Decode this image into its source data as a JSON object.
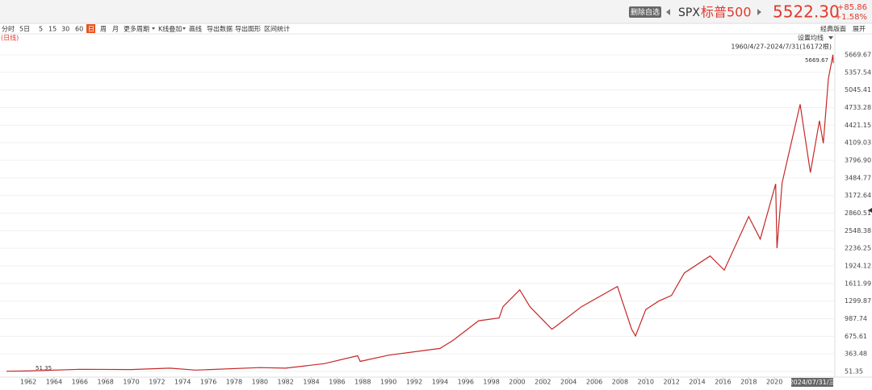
{
  "header": {
    "button": "删除自选",
    "symbol": "SPX",
    "name": "标普500",
    "price": "5522.30",
    "change": "+85.86",
    "change_pct": "+1.58%"
  },
  "toolbar": {
    "items": [
      "分时",
      "5日",
      "5",
      "15",
      "30",
      "60",
      "日",
      "周",
      "月",
      "更多周期",
      "K线叠加",
      "画线",
      "导出数据",
      "导出图形",
      "区间统计"
    ],
    "active": 6,
    "right": [
      "经典版面",
      "展开"
    ]
  },
  "chart_data": {
    "type": "line",
    "period_label": "(日线)",
    "ma_setting": "设置均线",
    "range_label": "1960/4/27-2024/7/31(16172根)",
    "cursor_label": "2024/07/31/三",
    "x": [
      1960.3,
      1962,
      1966,
      1970,
      1973,
      1975,
      1980,
      1982,
      1985,
      1987.6,
      1987.8,
      1990,
      1994,
      1995,
      1997,
      1998.6,
      1998.9,
      2000.2,
      2001,
      2002.7,
      2003,
      2005,
      2007.8,
      2008.9,
      2009.2,
      2010,
      2011,
      2012,
      2013,
      2015,
      2016.1,
      2018,
      2018.9,
      2020.1,
      2020.2,
      2020.6,
      2021,
      2022,
      2022.8,
      2023.5,
      2023.8,
      2024.2,
      2024.55,
      2024.58
    ],
    "series": [
      {
        "color": "#c62828",
        "values": [
          55,
          60,
          90,
          85,
          110,
          75,
          120,
          110,
          190,
          330,
          230,
          340,
          460,
          600,
          950,
          1000,
          1200,
          1500,
          1200,
          800,
          850,
          1200,
          1560,
          800,
          680,
          1150,
          1300,
          1400,
          1800,
          2100,
          1850,
          2800,
          2400,
          3380,
          2240,
          3400,
          3800,
          4790,
          3580,
          4500,
          4100,
          5250,
          5669.67,
          5522.3
        ]
      }
    ],
    "max_label": 5669.67,
    "min_label": 51.35,
    "xlim": [
      1959.8,
      2024.7
    ],
    "xticks": [
      1962,
      1964,
      1966,
      1968,
      1970,
      1972,
      1974,
      1976,
      1978,
      1980,
      1982,
      1984,
      1986,
      1988,
      1990,
      1992,
      1994,
      1996,
      1998,
      2000,
      2002,
      2004,
      2006,
      2008,
      2010,
      2012,
      2014,
      2016,
      2018,
      2020,
      2022
    ],
    "ylim": [
      -48.7,
      5812.6
    ],
    "yticks": [
      51.35,
      363.48,
      675.61,
      987.74,
      1299.87,
      1611.99,
      1924.12,
      2236.25,
      2548.38,
      2860.51,
      3172.64,
      3484.77,
      {
        "value": 3796.9,
        "label": "3796.90"
      },
      4109.03,
      4421.15,
      4733.28,
      5045.41,
      5357.54,
      5669.67
    ],
    "grid": true
  }
}
